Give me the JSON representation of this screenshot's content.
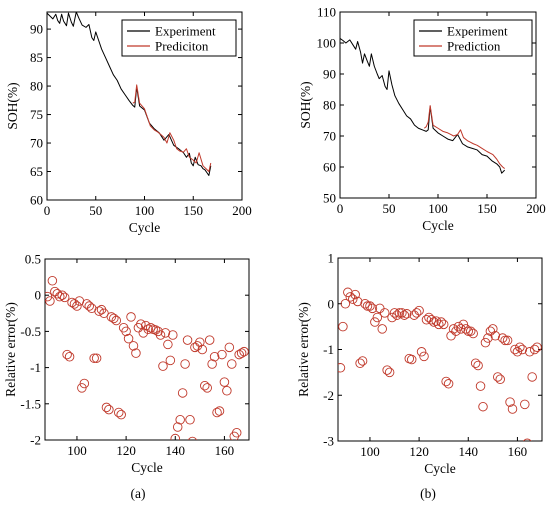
{
  "chart_data": [
    {
      "id": "a-top",
      "type": "line",
      "xlabel": "Cycle",
      "ylabel": "SOH(%)",
      "xlim": [
        0,
        200
      ],
      "ylim": [
        60,
        93
      ],
      "xticks": [
        0,
        50,
        100,
        150,
        200
      ],
      "yticks": [
        60,
        65,
        70,
        75,
        80,
        85,
        90
      ],
      "legend": "top-right",
      "series": [
        {
          "name": "Experiment",
          "color": "#000000",
          "x": [
            0,
            3,
            6,
            9,
            11,
            13,
            15,
            17,
            20,
            22,
            25,
            27,
            30,
            33,
            36,
            40,
            43,
            46,
            48,
            50,
            53,
            56,
            60,
            64,
            68,
            72,
            76,
            80,
            84,
            88,
            90,
            92,
            95,
            100,
            105,
            110,
            115,
            120,
            125,
            130,
            135,
            140,
            143,
            146,
            148,
            150,
            152,
            155,
            158,
            160,
            162,
            164,
            166,
            168
          ],
          "y": [
            92.8,
            92.3,
            91.8,
            92.6,
            91.5,
            91.0,
            92.6,
            91.4,
            90.6,
            92.8,
            91.2,
            90.5,
            93.0,
            91.8,
            90.7,
            90.3,
            90.8,
            88.5,
            88.0,
            89.5,
            88.0,
            86.5,
            85.0,
            83.5,
            82.0,
            81.0,
            79.5,
            78.5,
            77.5,
            76.6,
            76.3,
            79.8,
            76.5,
            75.8,
            73.5,
            72.5,
            71.8,
            70.5,
            71.5,
            69.6,
            69.0,
            68.3,
            67.5,
            68.2,
            66.5,
            66.0,
            67.5,
            66.2,
            66.0,
            65.5,
            65.3,
            64.8,
            64.3,
            66.0
          ]
        },
        {
          "name": "Prediciton",
          "color": "#c0392b",
          "x": [
            88,
            90,
            92,
            95,
            100,
            103,
            106,
            110,
            113,
            116,
            120,
            123,
            126,
            130,
            133,
            136,
            140,
            143,
            146,
            150,
            153,
            156,
            160,
            163,
            166,
            168
          ],
          "y": [
            77.0,
            77.2,
            80.2,
            77.0,
            76.0,
            74.5,
            73.0,
            72.3,
            72.0,
            71.6,
            71.0,
            70.0,
            71.8,
            70.5,
            69.0,
            68.6,
            68.4,
            69.0,
            67.5,
            67.0,
            66.5,
            68.3,
            66.0,
            65.5,
            65.0,
            66.5
          ]
        }
      ]
    },
    {
      "id": "b-top",
      "type": "line",
      "xlabel": "Cycle",
      "ylabel": "SOH(%)",
      "xlim": [
        0,
        200
      ],
      "ylim": [
        50,
        110
      ],
      "xticks": [
        0,
        50,
        100,
        150,
        200
      ],
      "yticks": [
        50,
        60,
        70,
        80,
        90,
        100,
        110
      ],
      "legend": "top-right",
      "series": [
        {
          "name": "Experiment",
          "color": "#000000",
          "x": [
            0,
            3,
            6,
            10,
            13,
            16,
            18,
            21,
            23,
            25,
            28,
            30,
            32,
            35,
            38,
            40,
            43,
            46,
            48,
            50,
            53,
            56,
            60,
            64,
            68,
            72,
            76,
            80,
            84,
            88,
            90,
            92,
            95,
            100,
            105,
            110,
            115,
            120,
            125,
            130,
            135,
            140,
            145,
            150,
            155,
            160,
            163,
            165,
            168
          ],
          "y": [
            101.5,
            100.8,
            100.0,
            101.0,
            99.5,
            98.0,
            100.5,
            97.0,
            93.5,
            96.5,
            94.0,
            92.5,
            96.5,
            92.5,
            90.0,
            88.5,
            89.5,
            86.0,
            85.0,
            91.0,
            86.5,
            83.0,
            80.5,
            78.5,
            76.5,
            75.5,
            73.5,
            72.5,
            72.0,
            71.5,
            72.0,
            79.5,
            72.5,
            71.0,
            70.0,
            69.0,
            68.5,
            70.5,
            67.5,
            66.5,
            66.0,
            65.5,
            64.0,
            63.5,
            62.0,
            61.0,
            60.0,
            58.0,
            59.0
          ]
        },
        {
          "name": "Prediction",
          "color": "#c0392b",
          "x": [
            86,
            88,
            90,
            92,
            95,
            100,
            105,
            110,
            113,
            116,
            120,
            123,
            126,
            130,
            133,
            136,
            140,
            145,
            150,
            153,
            156,
            160,
            163,
            166,
            168
          ],
          "y": [
            72.5,
            73.0,
            74.5,
            79.8,
            73.5,
            72.5,
            71.5,
            71.0,
            70.5,
            70.0,
            70.5,
            72.0,
            69.5,
            68.5,
            68.0,
            67.5,
            67.0,
            66.0,
            65.0,
            64.5,
            64.0,
            62.5,
            61.0,
            60.0,
            59.5
          ]
        }
      ]
    },
    {
      "id": "a-bottom",
      "type": "scatter",
      "xlabel": "Cycle",
      "ylabel": "Relative error(%)",
      "xlim": [
        87,
        170
      ],
      "ylim": [
        -2,
        0.5
      ],
      "xticks": [
        100,
        120,
        140,
        160
      ],
      "yticks": [
        -2,
        -1.5,
        -1,
        -0.5,
        0,
        0.5
      ],
      "series": [
        {
          "name": "",
          "color": "#c0392b",
          "x": [
            88,
            89,
            90,
            91,
            92,
            93,
            94,
            95,
            96,
            97,
            98,
            99,
            100,
            101,
            102,
            103,
            104,
            105,
            106,
            107,
            108,
            109,
            110,
            111,
            112,
            113,
            114,
            115,
            116,
            117,
            118,
            119,
            120,
            121,
            122,
            123,
            124,
            125,
            126,
            127,
            128,
            129,
            130,
            131,
            132,
            133,
            134,
            135,
            136,
            137,
            138,
            139,
            140,
            141,
            142,
            143,
            144,
            145,
            146,
            147,
            148,
            149,
            150,
            151,
            152,
            153,
            154,
            155,
            156,
            157,
            158,
            159,
            160,
            161,
            162,
            163,
            164,
            165,
            166,
            167,
            168
          ],
          "y": [
            -0.02,
            -0.08,
            0.2,
            0.05,
            0.02,
            -0.02,
            0.0,
            -0.03,
            -0.82,
            -0.85,
            -0.1,
            -0.12,
            -0.15,
            -0.08,
            -1.28,
            -1.22,
            -0.12,
            -0.15,
            -0.18,
            -0.87,
            -0.87,
            -0.22,
            -0.2,
            -0.25,
            -1.55,
            -1.58,
            -0.3,
            -0.32,
            -0.35,
            -1.62,
            -1.65,
            -0.45,
            -0.5,
            -0.6,
            -0.3,
            -0.7,
            -0.8,
            -0.45,
            -0.4,
            -0.52,
            -0.42,
            -0.47,
            -0.45,
            -0.47,
            -0.48,
            -0.5,
            -0.55,
            -0.98,
            -0.52,
            -0.68,
            -0.9,
            -0.55,
            -1.98,
            -1.82,
            -1.72,
            -1.35,
            -0.95,
            -0.62,
            -1.72,
            -2.02,
            -0.72,
            -0.7,
            -0.65,
            -0.75,
            -1.25,
            -1.28,
            -0.62,
            -0.95,
            -0.85,
            -1.62,
            -1.6,
            -0.82,
            -1.2,
            -1.32,
            -0.72,
            -0.95,
            -1.95,
            -1.9,
            -0.82,
            -0.8,
            -0.78
          ]
        }
      ]
    },
    {
      "id": "b-bottom",
      "type": "scatter",
      "xlabel": "Cycle",
      "ylabel": "Relative error(%)",
      "xlim": [
        87,
        170
      ],
      "ylim": [
        -3,
        1
      ],
      "xticks": [
        100,
        120,
        140,
        160
      ],
      "yticks": [
        -3,
        -2,
        -1,
        0,
        1
      ],
      "series": [
        {
          "name": "",
          "color": "#c0392b",
          "x": [
            88,
            89,
            90,
            91,
            92,
            93,
            94,
            95,
            96,
            97,
            98,
            99,
            100,
            101,
            102,
            103,
            104,
            105,
            106,
            107,
            108,
            109,
            110,
            111,
            112,
            113,
            114,
            115,
            116,
            117,
            118,
            119,
            120,
            121,
            122,
            123,
            124,
            125,
            126,
            127,
            128,
            129,
            130,
            131,
            132,
            133,
            134,
            135,
            136,
            137,
            138,
            139,
            140,
            141,
            142,
            143,
            144,
            145,
            146,
            147,
            148,
            149,
            150,
            151,
            152,
            153,
            154,
            155,
            156,
            157,
            158,
            159,
            160,
            161,
            162,
            163,
            164,
            165,
            166,
            167,
            168
          ],
          "y": [
            -1.4,
            -0.5,
            0.0,
            0.25,
            0.15,
            0.1,
            0.2,
            0.05,
            -1.3,
            -1.25,
            0.0,
            -0.05,
            -0.05,
            -0.1,
            -0.4,
            -0.3,
            -0.1,
            -0.55,
            -0.2,
            -1.45,
            -1.5,
            -0.3,
            -0.2,
            -0.25,
            -0.2,
            -0.2,
            -0.25,
            -0.22,
            -1.2,
            -1.22,
            -0.25,
            -0.2,
            -0.15,
            -1.05,
            -1.15,
            -0.35,
            -0.3,
            -0.35,
            -0.4,
            -0.38,
            -0.45,
            -0.4,
            -0.45,
            -1.7,
            -1.75,
            -0.7,
            -0.55,
            -0.6,
            -0.5,
            -0.55,
            -0.45,
            -0.55,
            -0.6,
            -0.6,
            -0.65,
            -1.3,
            -1.35,
            -1.8,
            -2.25,
            -0.85,
            -0.75,
            -0.6,
            -0.55,
            -0.7,
            -1.6,
            -1.65,
            -0.75,
            -0.8,
            -0.8,
            -2.15,
            -2.3,
            -1.0,
            -1.05,
            -0.95,
            -1.0,
            -2.2,
            -3.05,
            -1.05,
            -1.6,
            -1.0,
            -0.95
          ]
        }
      ]
    }
  ],
  "panel_labels": {
    "a": "(a)",
    "b": "(b)"
  }
}
